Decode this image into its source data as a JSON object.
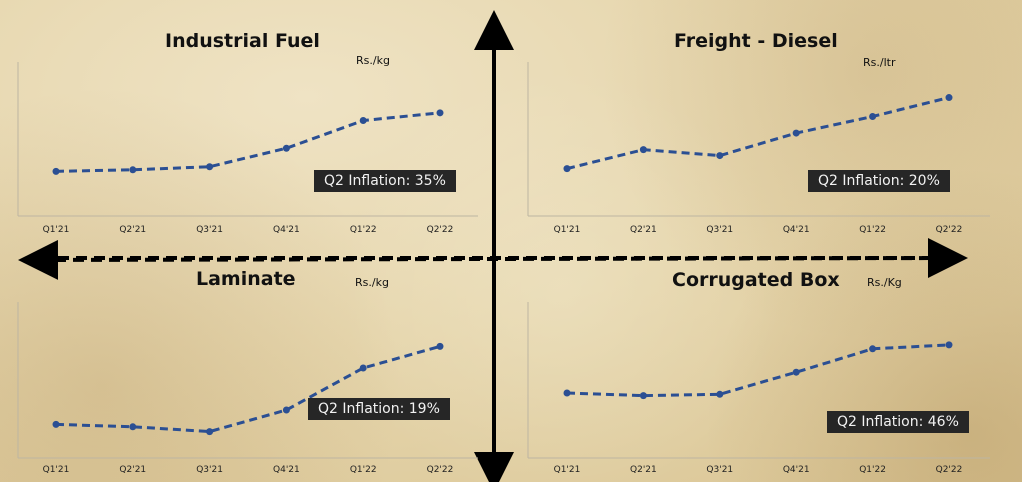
{
  "chart_data": [
    {
      "type": "line",
      "title": "Industrial Fuel",
      "unit": "Rs./kg",
      "categories": [
        "Q1'21",
        "Q2'21",
        "Q3'21",
        "Q4'21",
        "Q1'22",
        "Q2'22"
      ],
      "values": [
        29,
        30,
        32,
        44,
        62,
        67
      ],
      "ylim": [
        0,
        100
      ],
      "annotation": "Q2 Inflation: 35%",
      "color": "#2b4f93"
    },
    {
      "type": "line",
      "title": "Freight - Diesel",
      "unit": "Rs./ltr",
      "categories": [
        "Q1'21",
        "Q2'21",
        "Q3'21",
        "Q4'21",
        "Q1'22",
        "Q2'22"
      ],
      "values": [
        40,
        56,
        51,
        70,
        84,
        100
      ],
      "ylim": [
        0,
        130
      ],
      "annotation": "Q2 Inflation: 20%",
      "color": "#2b4f93"
    },
    {
      "type": "line",
      "title": "Laminate",
      "unit": "Rs./kg",
      "categories": [
        "Q1'21",
        "Q2'21",
        "Q3'21",
        "Q4'21",
        "Q1'22",
        "Q2'22"
      ],
      "values": [
        28,
        26,
        22,
        40,
        75,
        93
      ],
      "ylim": [
        0,
        130
      ],
      "annotation": "Q2 Inflation: 19%",
      "color": "#2b4f93"
    },
    {
      "type": "line",
      "title": "Corrugated Box",
      "unit": "Rs./Kg",
      "categories": [
        "Q1'21",
        "Q2'21",
        "Q3'21",
        "Q4'21",
        "Q1'22",
        "Q2'22"
      ],
      "values": [
        50,
        48,
        49,
        66,
        84,
        87
      ],
      "ylim": [
        0,
        120
      ],
      "annotation": "Q2 Inflation: 46%",
      "color": "#2b4f93"
    }
  ]
}
